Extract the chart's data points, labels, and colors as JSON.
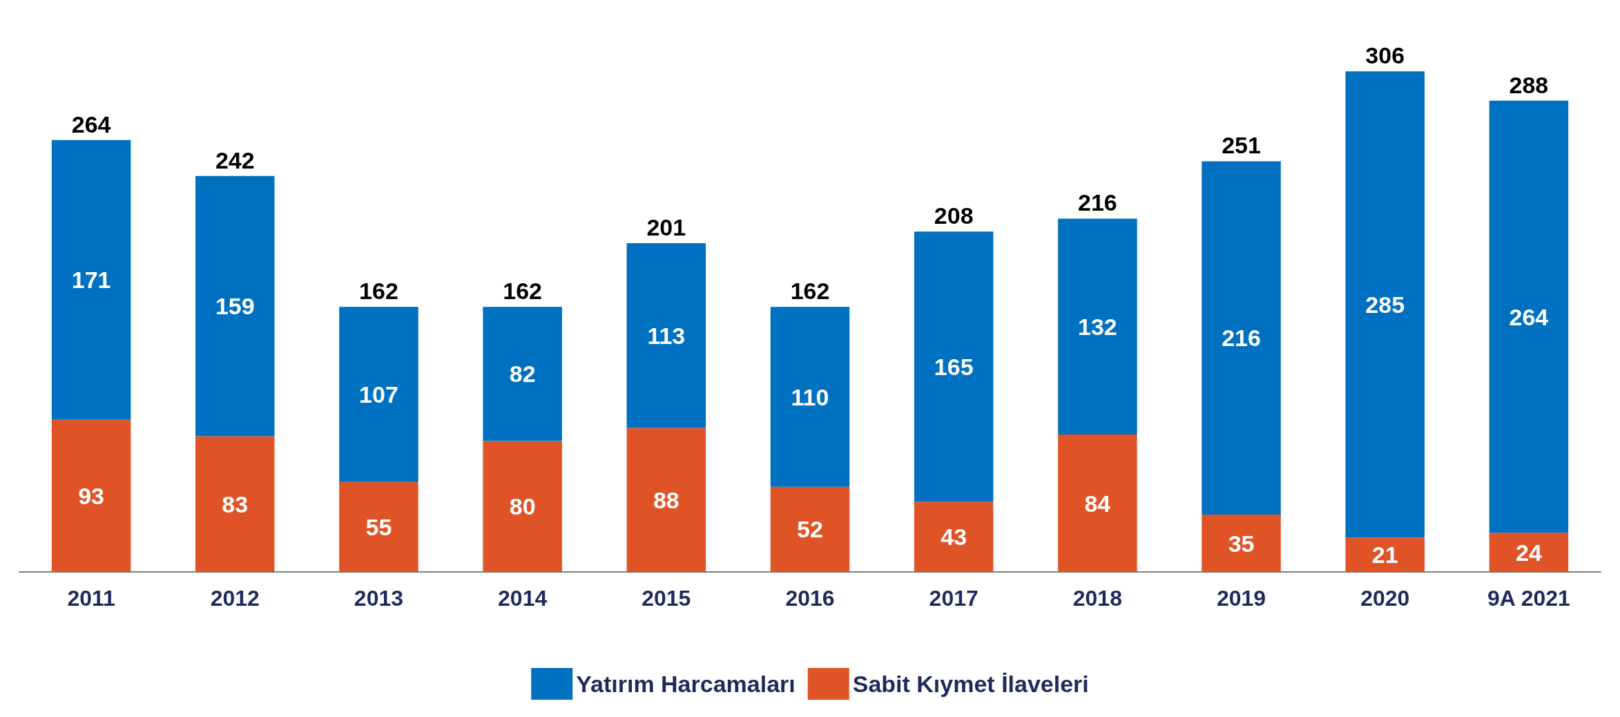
{
  "chart_data": {
    "type": "bar",
    "stacked": true,
    "categories": [
      "2011",
      "2012",
      "2013",
      "2014",
      "2015",
      "2016",
      "2017",
      "2018",
      "2019",
      "2020",
      "9A 2021"
    ],
    "series": [
      {
        "name": "Sabit Kıymet İlaveleri",
        "color": "#e05326",
        "values": [
          93,
          83,
          55,
          80,
          88,
          52,
          43,
          84,
          35,
          21,
          24
        ]
      },
      {
        "name": "Yatırım Harcamaları",
        "color": "#0070c0",
        "values": [
          171,
          159,
          107,
          82,
          113,
          110,
          165,
          132,
          216,
          285,
          264
        ]
      }
    ],
    "data_labels": true,
    "totals": [
      "264",
      "242",
      "162",
      "162",
      "201",
      "162",
      "208",
      "216",
      "251",
      "306",
      "288"
    ],
    "legend": "bottom"
  }
}
